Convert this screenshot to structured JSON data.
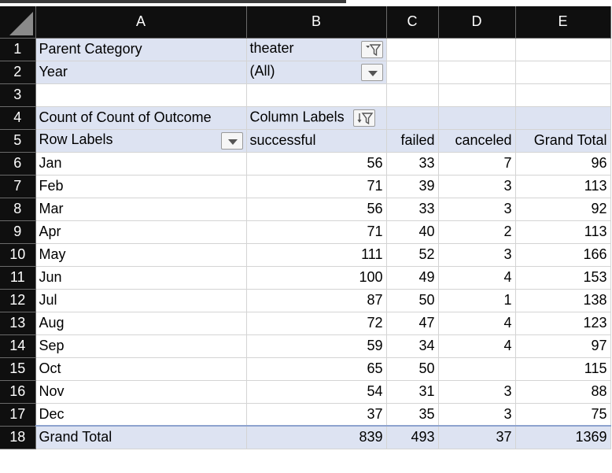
{
  "columns": [
    "A",
    "B",
    "C",
    "D",
    "E"
  ],
  "rows_numbers": [
    "1",
    "2",
    "3",
    "4",
    "5",
    "6",
    "7",
    "8",
    "9",
    "10",
    "11",
    "12",
    "13",
    "14",
    "15",
    "16",
    "17",
    "18"
  ],
  "filters": {
    "parent_category_label": "Parent Category",
    "parent_category_value": "theater",
    "year_label": "Year",
    "year_value": "(All)"
  },
  "pivot": {
    "value_label": "Count of Count of Outcome",
    "column_labels": "Column Labels",
    "row_labels": "Row Labels",
    "headers": [
      "successful",
      "failed",
      "canceled",
      "Grand Total"
    ],
    "rows": [
      {
        "label": "Jan",
        "successful": "56",
        "failed": "33",
        "canceled": "7",
        "total": "96"
      },
      {
        "label": "Feb",
        "successful": "71",
        "failed": "39",
        "canceled": "3",
        "total": "113"
      },
      {
        "label": "Mar",
        "successful": "56",
        "failed": "33",
        "canceled": "3",
        "total": "92"
      },
      {
        "label": "Apr",
        "successful": "71",
        "failed": "40",
        "canceled": "2",
        "total": "113"
      },
      {
        "label": "May",
        "successful": "111",
        "failed": "52",
        "canceled": "3",
        "total": "166"
      },
      {
        "label": "Jun",
        "successful": "100",
        "failed": "49",
        "canceled": "4",
        "total": "153"
      },
      {
        "label": "Jul",
        "successful": "87",
        "failed": "50",
        "canceled": "1",
        "total": "138"
      },
      {
        "label": "Aug",
        "successful": "72",
        "failed": "47",
        "canceled": "4",
        "total": "123"
      },
      {
        "label": "Sep",
        "successful": "59",
        "failed": "34",
        "canceled": "4",
        "total": "97"
      },
      {
        "label": "Oct",
        "successful": "65",
        "failed": "50",
        "canceled": "",
        "total": "115"
      },
      {
        "label": "Nov",
        "successful": "54",
        "failed": "31",
        "canceled": "3",
        "total": "88"
      },
      {
        "label": "Dec",
        "successful": "37",
        "failed": "35",
        "canceled": "3",
        "total": "75"
      }
    ],
    "grand_total": {
      "label": "Grand Total",
      "successful": "839",
      "failed": "493",
      "canceled": "37",
      "total": "1369"
    }
  },
  "colors": {
    "pivot_fill": "#dde3f2",
    "header_bg": "#0f0f0f",
    "pivot_line": "#8ea3cf"
  }
}
